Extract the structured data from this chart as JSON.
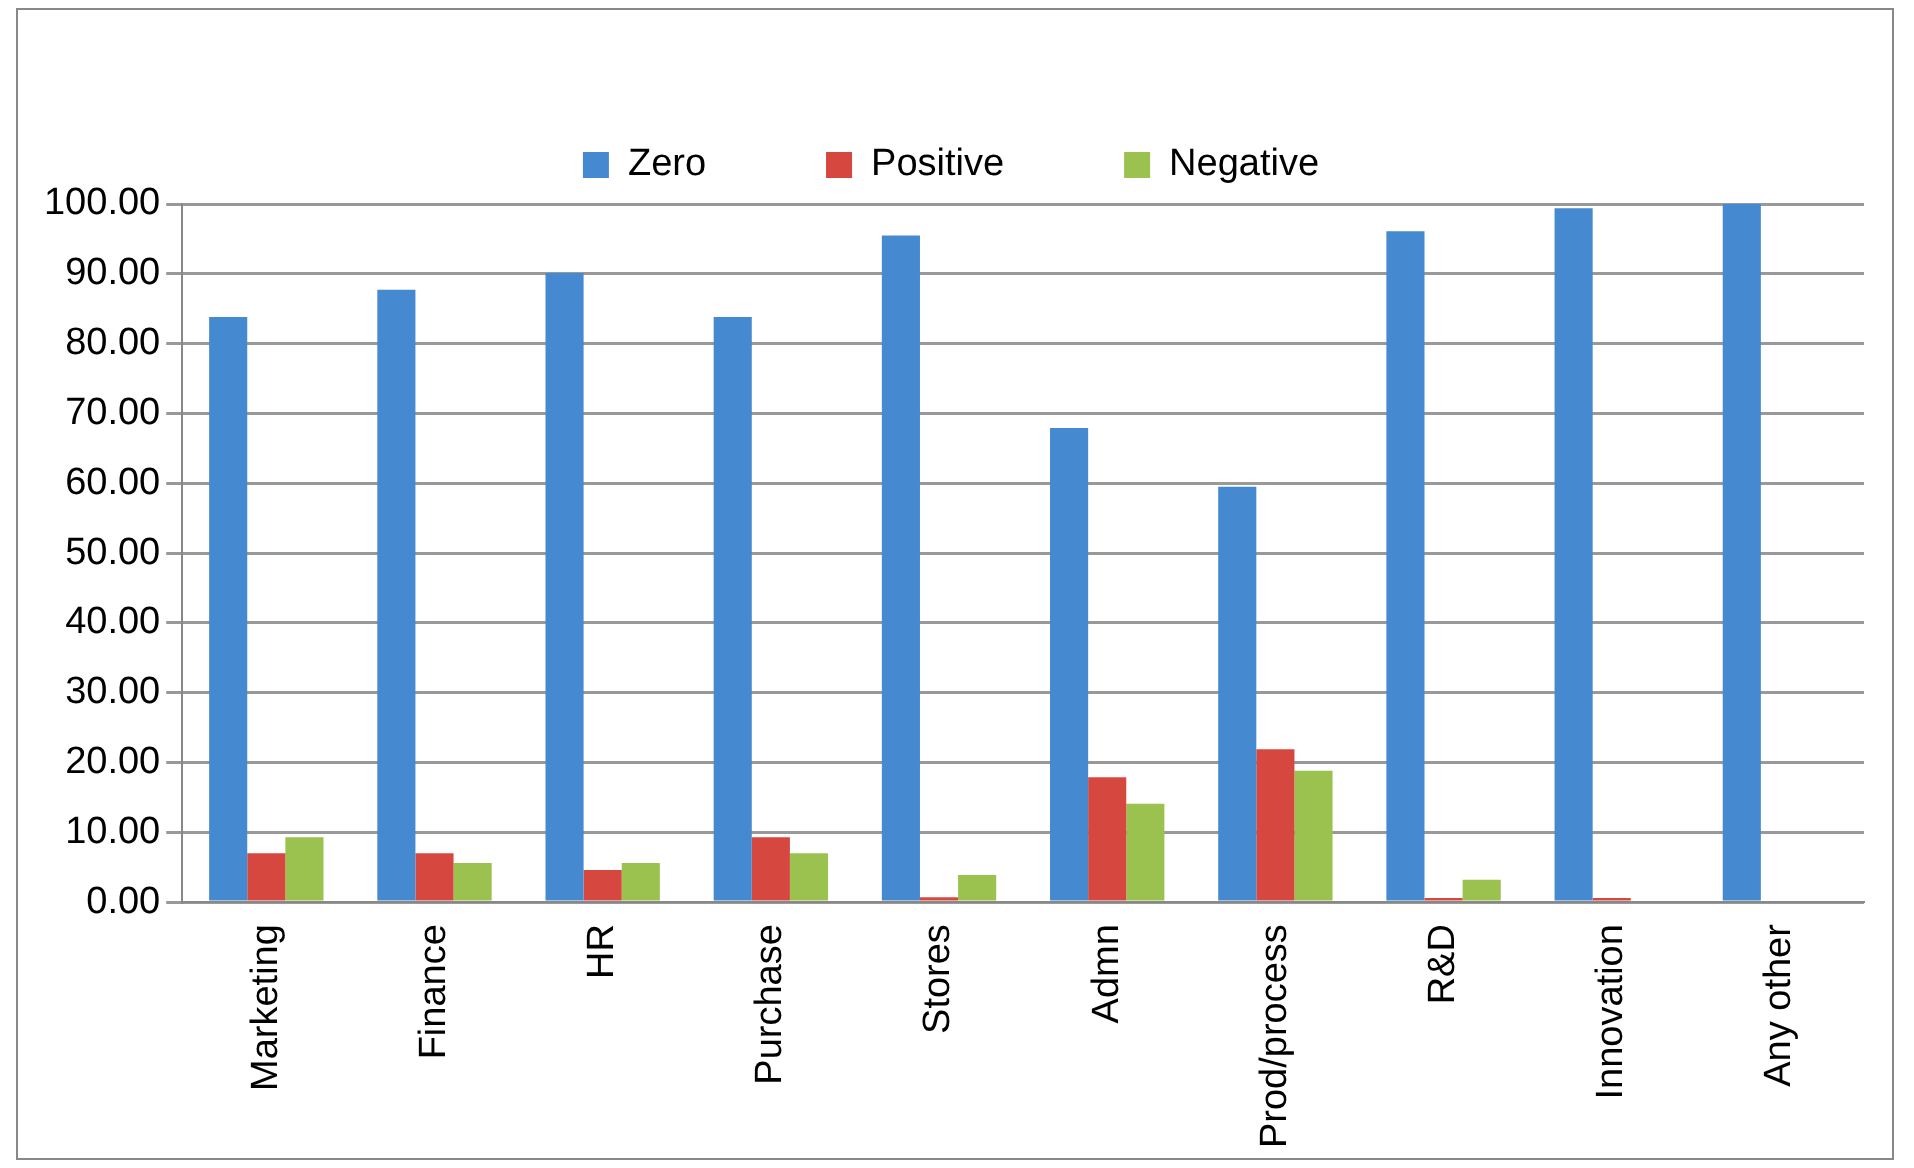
{
  "chart_data": {
    "type": "bar",
    "categories": [
      "Marketing",
      "Finance",
      "HR",
      "Purchase",
      "Stores",
      "Admn",
      "Prod/process",
      "R&D",
      "Innovation",
      "Any other"
    ],
    "series": [
      {
        "name": "Zero",
        "color": "#4589d0",
        "values": [
          83.8,
          87.7,
          90.1,
          83.8,
          95.5,
          67.9,
          59.5,
          96.1,
          99.4,
          100
        ]
      },
      {
        "name": "Positive",
        "color": "#d6483f",
        "values": [
          7.0,
          7.0,
          4.6,
          9.3,
          0.7,
          17.9,
          21.9,
          0.6,
          0.6,
          0
        ]
      },
      {
        "name": "Negative",
        "color": "#9bc24f",
        "values": [
          9.3,
          5.6,
          5.6,
          7.0,
          3.9,
          14.1,
          18.8,
          3.2,
          0,
          0
        ]
      }
    ],
    "ylim": [
      0,
      100
    ],
    "yticks": [
      {
        "value": 0,
        "label": "0.00"
      },
      {
        "value": 10,
        "label": "10.00"
      },
      {
        "value": 20,
        "label": "20.00"
      },
      {
        "value": 30,
        "label": "30.00"
      },
      {
        "value": 40,
        "label": "40.00"
      },
      {
        "value": 50,
        "label": "50.00"
      },
      {
        "value": 60,
        "label": "60.00"
      },
      {
        "value": 70,
        "label": "70.00"
      },
      {
        "value": 80,
        "label": "80.00"
      },
      {
        "value": 90,
        "label": "90.00"
      },
      {
        "value": 100,
        "label": "100.00"
      }
    ],
    "grid": "y",
    "legend": "top"
  }
}
